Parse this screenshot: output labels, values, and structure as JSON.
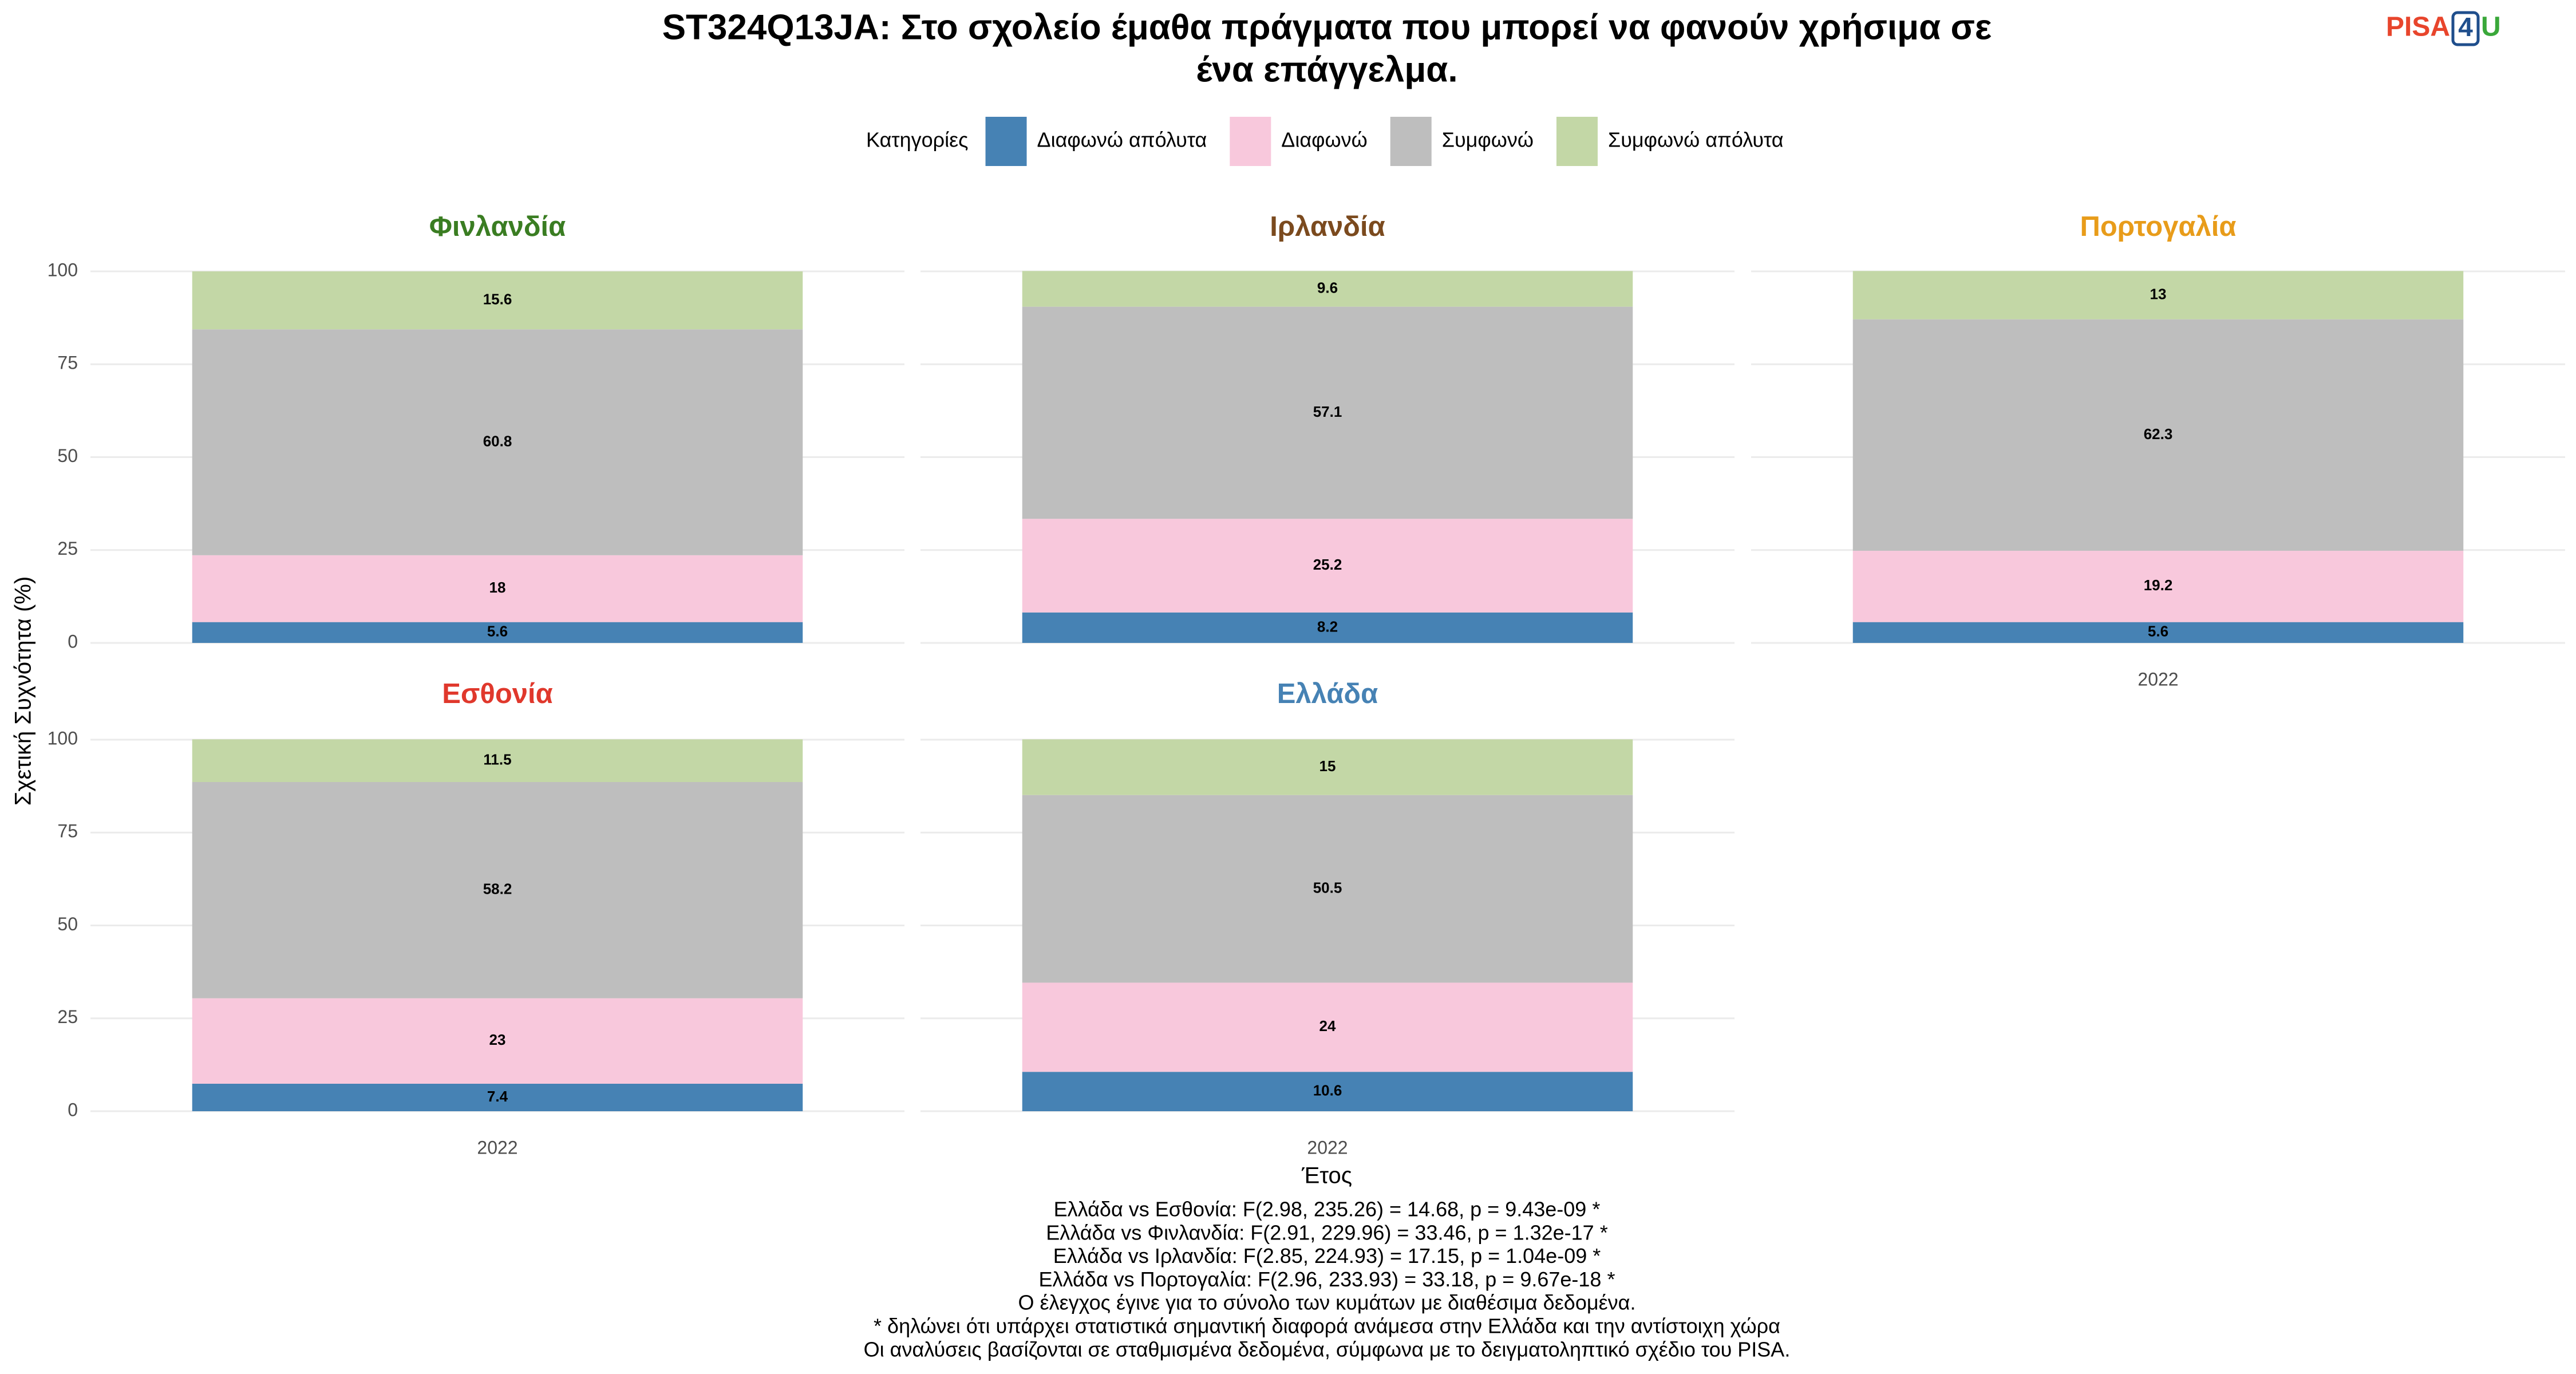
{
  "title": [
    "ST324Q13JA: Στο σχολείο έμαθα πράγματα που μπορεί να φανούν χρήσιμα σε",
    "ένα επάγγελμα."
  ],
  "logo": [
    "PISA",
    "4",
    "U"
  ],
  "legend_title": "Κατηγορίες",
  "y_label": "Σχετική Συχνότητα (%)",
  "x_label": "Έτος",
  "notes": [
    "Ελλάδα vs Εσθονία: F(2.98, 235.26) = 14.68, p = 9.43e-09 *",
    "Ελλάδα vs Φινλανδία: F(2.91, 229.96) = 33.46, p = 1.32e-17 *",
    "Ελλάδα vs Ιρλανδία: F(2.85, 224.93) = 17.15, p = 1.04e-09 *",
    "Ελλάδα vs Πορτογαλία: F(2.96, 233.93) = 33.18, p = 9.67e-18 *",
    "Ο έλεγχος έγινε για το σύνολο των κυμάτων με διαθέσιμα δεδομένα.",
    "* δηλώνει ότι υπάρχει στατιστικά σημαντική διαφορά ανάμεσα στην Ελλάδα και την αντίστοιχη χώρα",
    "Οι αναλύσεις βασίζονται σε σταθμισμένα δεδομένα, σύμφωνα με το δειγματοληπτικό σχέδιο του PISA."
  ],
  "chart_data": [
    {
      "type": "bar",
      "stacked": true,
      "title": "Φινλανδία",
      "title_color": "#3a7d22",
      "categories": [
        null
      ],
      "series": [
        {
          "name": "Διαφωνώ απόλυτα",
          "color": "#4682b4",
          "values": [
            5.6
          ]
        },
        {
          "name": "Διαφωνώ",
          "color": "#f8c8dc",
          "values": [
            18
          ]
        },
        {
          "name": "Συμφωνώ",
          "color": "#bebebe",
          "values": [
            60.8
          ]
        },
        {
          "name": "Συμφωνώ απόλυτα",
          "color": "#c3d7a6",
          "values": [
            15.6
          ]
        }
      ],
      "ylim": [
        0,
        100
      ],
      "yticks": [
        0,
        25,
        50,
        75,
        100
      ],
      "y_tick_labels": true,
      "grid": true
    },
    {
      "type": "bar",
      "stacked": true,
      "title": "Ιρλανδία",
      "title_color": "#7b4a1e",
      "categories": [
        null
      ],
      "series": [
        {
          "name": "Διαφωνώ απόλυτα",
          "color": "#4682b4",
          "values": [
            8.2
          ]
        },
        {
          "name": "Διαφωνώ",
          "color": "#f8c8dc",
          "values": [
            25.2
          ]
        },
        {
          "name": "Συμφωνώ",
          "color": "#bebebe",
          "values": [
            57.1
          ]
        },
        {
          "name": "Συμφωνώ απόλυτα",
          "color": "#c3d7a6",
          "values": [
            9.6
          ]
        }
      ],
      "ylim": [
        0,
        100
      ],
      "yticks": [
        0,
        25,
        50,
        75,
        100
      ],
      "y_tick_labels": false,
      "grid": true
    },
    {
      "type": "bar",
      "stacked": true,
      "title": "Πορτογαλία",
      "title_color": "#e89c1a",
      "categories": [
        "2022"
      ],
      "series": [
        {
          "name": "Διαφωνώ απόλυτα",
          "color": "#4682b4",
          "values": [
            5.6
          ]
        },
        {
          "name": "Διαφωνώ",
          "color": "#f8c8dc",
          "values": [
            19.2
          ]
        },
        {
          "name": "Συμφωνώ",
          "color": "#bebebe",
          "values": [
            62.3
          ]
        },
        {
          "name": "Συμφωνώ απόλυτα",
          "color": "#c3d7a6",
          "values": [
            13
          ]
        }
      ],
      "ylim": [
        0,
        100
      ],
      "yticks": [
        0,
        25,
        50,
        75,
        100
      ],
      "y_tick_labels": false,
      "grid": true
    },
    {
      "type": "bar",
      "stacked": true,
      "title": "Εσθονία",
      "title_color": "#e0382c",
      "categories": [
        "2022"
      ],
      "series": [
        {
          "name": "Διαφωνώ απόλυτα",
          "color": "#4682b4",
          "values": [
            7.4
          ]
        },
        {
          "name": "Διαφωνώ",
          "color": "#f8c8dc",
          "values": [
            23
          ]
        },
        {
          "name": "Συμφωνώ",
          "color": "#bebebe",
          "values": [
            58.2
          ]
        },
        {
          "name": "Συμφωνώ απόλυτα",
          "color": "#c3d7a6",
          "values": [
            11.5
          ]
        }
      ],
      "ylim": [
        0,
        100
      ],
      "yticks": [
        0,
        25,
        50,
        75,
        100
      ],
      "y_tick_labels": true,
      "grid": true
    },
    {
      "type": "bar",
      "stacked": true,
      "title": "Ελλάδα",
      "title_color": "#4682b4",
      "categories": [
        "2022"
      ],
      "series": [
        {
          "name": "Διαφωνώ απόλυτα",
          "color": "#4682b4",
          "values": [
            10.6
          ]
        },
        {
          "name": "Διαφωνώ",
          "color": "#f8c8dc",
          "values": [
            24
          ]
        },
        {
          "name": "Συμφωνώ",
          "color": "#bebebe",
          "values": [
            50.5
          ]
        },
        {
          "name": "Συμφωνώ απόλυτα",
          "color": "#c3d7a6",
          "values": [
            15
          ]
        }
      ],
      "ylim": [
        0,
        100
      ],
      "yticks": [
        0,
        25,
        50,
        75,
        100
      ],
      "y_tick_labels": false,
      "grid": true
    }
  ]
}
